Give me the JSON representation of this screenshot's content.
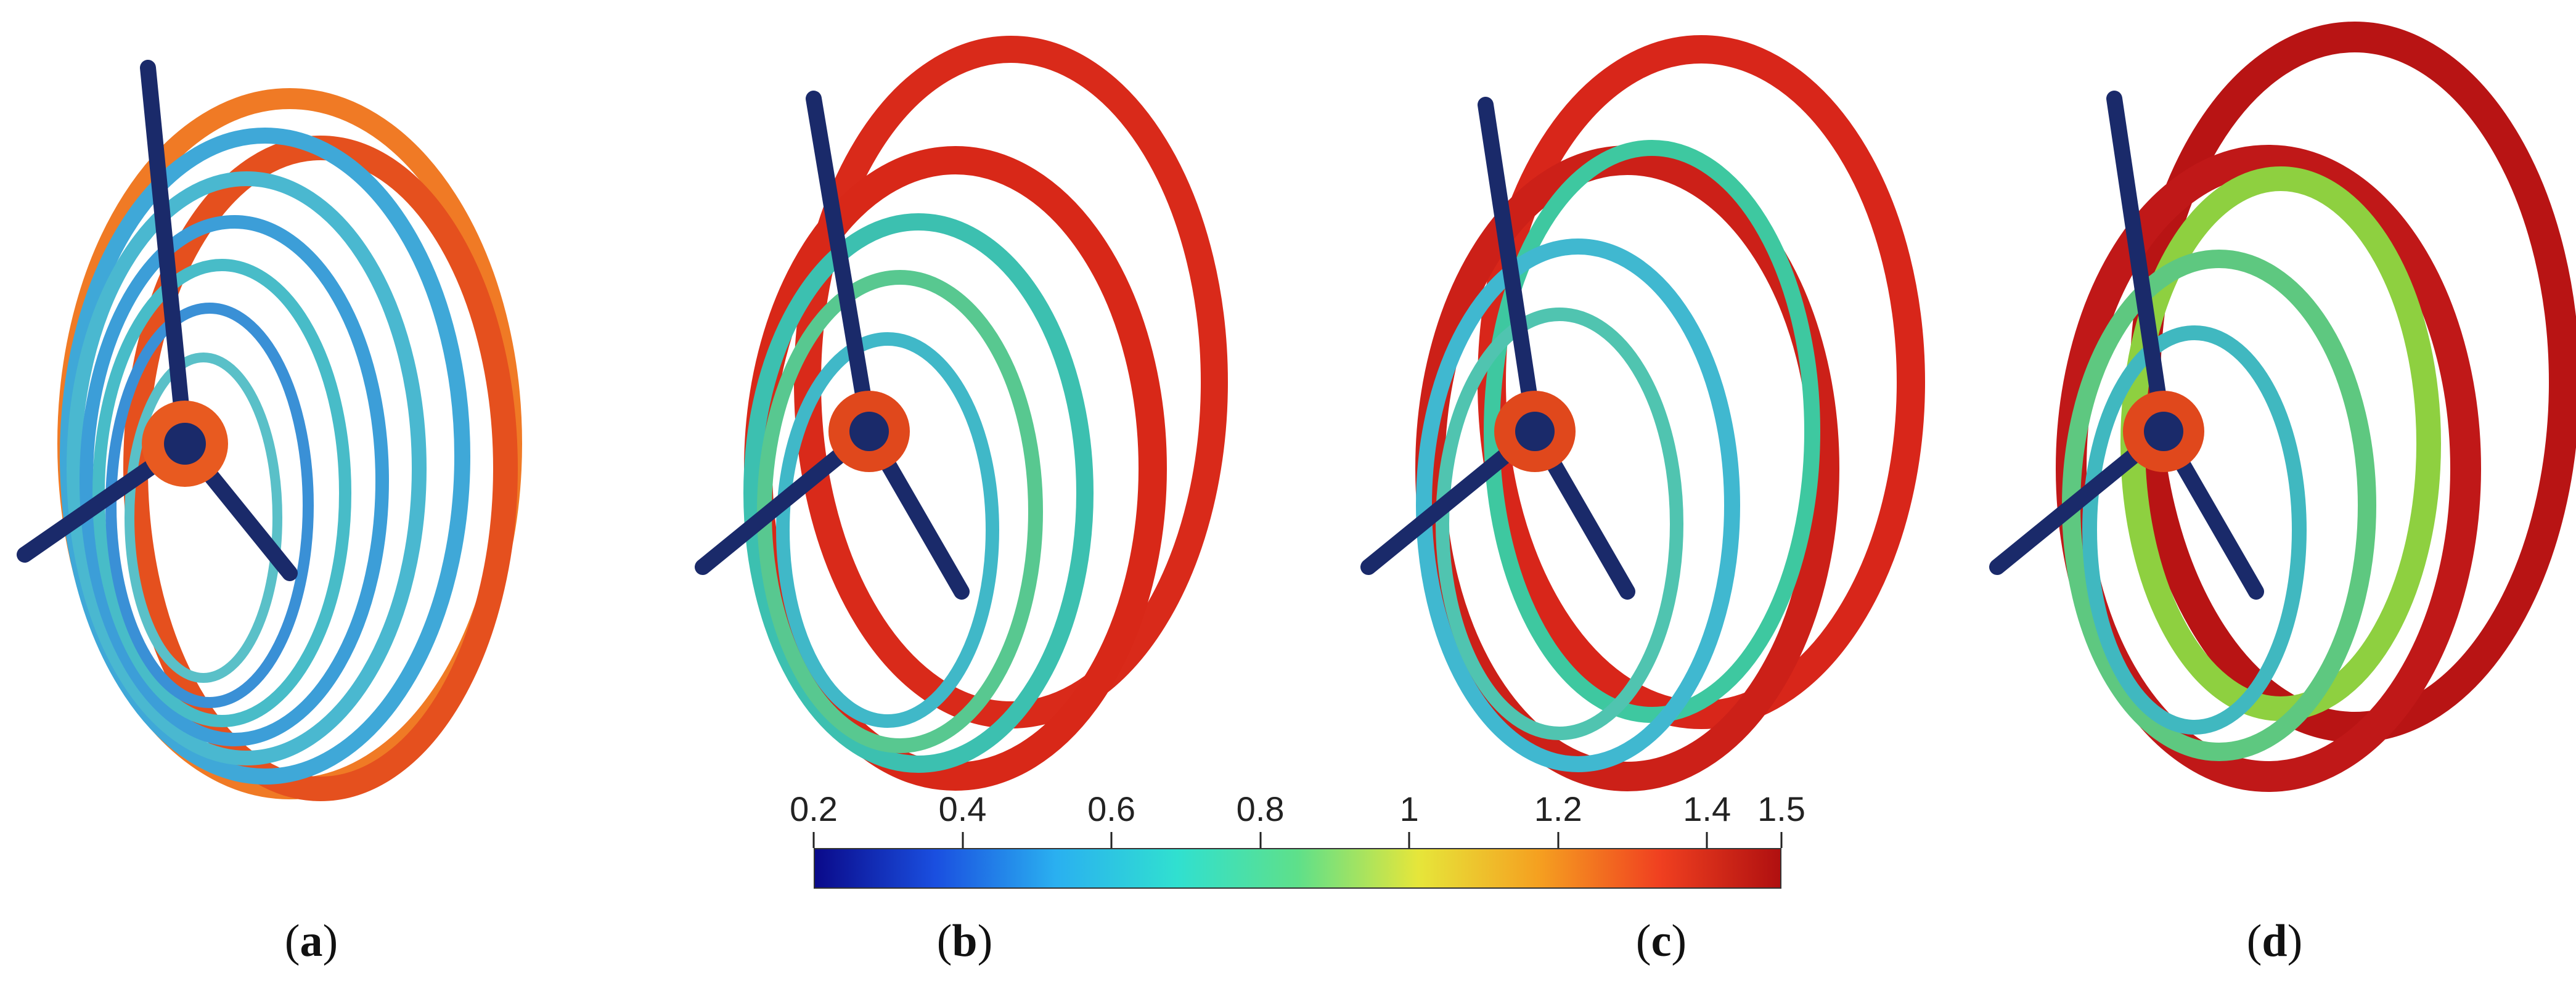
{
  "figure": {
    "panels": [
      {
        "id": "a",
        "caption_open": "(",
        "caption_letter": "a",
        "caption_close": ")"
      },
      {
        "id": "b",
        "caption_open": "(",
        "caption_letter": "b",
        "caption_close": ")"
      },
      {
        "id": "c",
        "caption_open": "(",
        "caption_letter": "c",
        "caption_close": ")"
      },
      {
        "id": "d",
        "caption_open": "(",
        "caption_letter": "d",
        "caption_close": ")"
      }
    ],
    "colorbar": {
      "min": 0.2,
      "max": 1.5,
      "tick_labels": [
        "0.2",
        "0.4",
        "0.6",
        "0.8",
        "1",
        "1.2",
        "1.4",
        "1.5"
      ],
      "tick_values": [
        0.2,
        0.4,
        0.6,
        0.8,
        1.0,
        1.2,
        1.4,
        1.5
      ],
      "colors": [
        "#0a0a8a",
        "#1a4fe0",
        "#2ab0f0",
        "#30e0d0",
        "#5ee08a",
        "#e6e63a",
        "#f5a020",
        "#f04020",
        "#b01010"
      ]
    }
  }
}
